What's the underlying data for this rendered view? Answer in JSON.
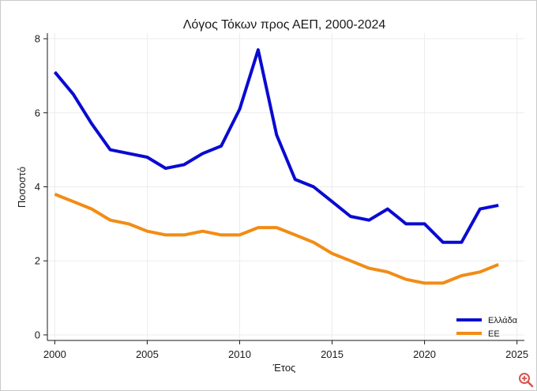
{
  "chart_data": {
    "type": "line",
    "title": "Λόγος Τόκων προς ΑΕΠ, 2000-2024",
    "xlabel": "Έτος",
    "ylabel": "Ποσοστό",
    "xlim": [
      1999.6,
      2025.4
    ],
    "ylim": [
      -0.15,
      8.15
    ],
    "xticks": [
      2000,
      2005,
      2010,
      2015,
      2020,
      2025
    ],
    "yticks": [
      0,
      2,
      4,
      6,
      8
    ],
    "grid": true,
    "legend_position": "bottom-right",
    "x": [
      2000,
      2001,
      2002,
      2003,
      2004,
      2005,
      2006,
      2007,
      2008,
      2009,
      2010,
      2011,
      2012,
      2013,
      2014,
      2015,
      2016,
      2017,
      2018,
      2019,
      2020,
      2021,
      2022,
      2023,
      2024
    ],
    "series": [
      {
        "name": "Ελλάδα",
        "color": "#0a0ad2",
        "values": [
          7.1,
          6.5,
          5.7,
          5.0,
          4.9,
          4.8,
          4.5,
          4.6,
          4.9,
          5.1,
          6.1,
          7.7,
          5.4,
          4.2,
          4.0,
          3.6,
          3.2,
          3.1,
          3.4,
          3.0,
          3.0,
          2.5,
          2.5,
          3.4,
          3.5
        ]
      },
      {
        "name": "ΕΕ",
        "color": "#f28c14",
        "values": [
          3.8,
          3.6,
          3.4,
          3.1,
          3.0,
          2.8,
          2.7,
          2.7,
          2.8,
          2.7,
          2.7,
          2.9,
          2.9,
          2.7,
          2.5,
          2.2,
          2.0,
          1.8,
          1.7,
          1.5,
          1.4,
          1.4,
          1.6,
          1.7,
          1.9
        ]
      }
    ]
  },
  "ui": {
    "zoom_icon": "zoom-in-icon",
    "zoom_color": "#d9534f"
  }
}
